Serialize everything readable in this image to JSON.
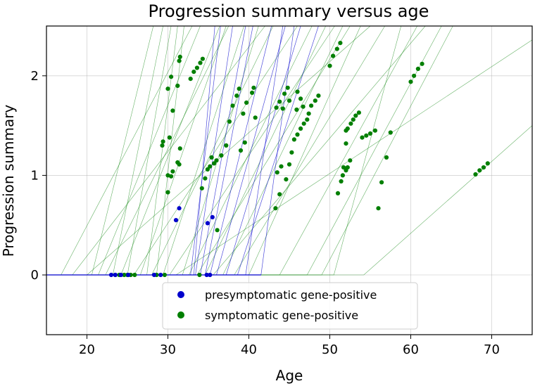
{
  "chart_data": {
    "type": "scatter",
    "title": "Progression summary versus age",
    "xlabel": "Age",
    "ylabel": "Progression summary",
    "xlim": [
      15,
      75
    ],
    "ylim": [
      -0.6,
      2.5
    ],
    "xticks": [
      "20",
      "30",
      "40",
      "50",
      "60",
      "70"
    ],
    "yticks": [
      "0",
      "1",
      "2"
    ],
    "xtick_values": [
      20,
      30,
      40,
      50,
      60,
      70
    ],
    "ytick_values": [
      0,
      1,
      2
    ],
    "grid": true,
    "legend_position": "bottom-center",
    "series": [
      {
        "name": "presymptomatic gene-positive",
        "color": "#0000cc",
        "points": [
          [
            23.0,
            0
          ],
          [
            23.5,
            0
          ],
          [
            24.2,
            0
          ],
          [
            25.1,
            0
          ],
          [
            28.3,
            0
          ],
          [
            29.1,
            0
          ],
          [
            34.8,
            0
          ],
          [
            35.2,
            0
          ],
          [
            31.0,
            0.55
          ],
          [
            31.4,
            0.67
          ],
          [
            34.9,
            0.52
          ],
          [
            35.5,
            0.58
          ]
        ],
        "trend_lines": [
          [
            [
              15,
              0
            ],
            [
              32.8,
              0
            ],
            [
              36.5,
              2.5
            ]
          ],
          [
            [
              15,
              0
            ],
            [
              33.2,
              0
            ],
            [
              35.8,
              2.5
            ]
          ],
          [
            [
              15,
              0
            ],
            [
              33.4,
              0
            ],
            [
              38.0,
              2.5
            ]
          ],
          [
            [
              15,
              0
            ],
            [
              34.0,
              0
            ],
            [
              39.6,
              2.5
            ]
          ],
          [
            [
              15,
              0
            ],
            [
              34.6,
              0
            ],
            [
              40.5,
              2.5
            ]
          ],
          [
            [
              15,
              0
            ],
            [
              35.2,
              0
            ],
            [
              42.8,
              2.5
            ]
          ],
          [
            [
              15,
              0
            ],
            [
              36.0,
              0
            ],
            [
              44.5,
              2.5
            ]
          ],
          [
            [
              15,
              0
            ],
            [
              37.2,
              0
            ],
            [
              46.4,
              2.5
            ]
          ],
          [
            [
              15,
              0
            ],
            [
              38.6,
              0
            ],
            [
              48.6,
              2.5
            ]
          ],
          [
            [
              15,
              0
            ],
            [
              39.6,
              0
            ],
            [
              44.2,
              2.5
            ]
          ],
          [
            [
              15,
              0
            ],
            [
              41.5,
              0
            ],
            [
              45.6,
              2.5
            ]
          ]
        ]
      },
      {
        "name": "symptomatic gene-positive",
        "color": "#007f00",
        "points": [
          [
            23.5,
            0
          ],
          [
            24.0,
            0
          ],
          [
            24.6,
            0
          ],
          [
            25.0,
            0
          ],
          [
            25.4,
            0
          ],
          [
            25.9,
            0
          ],
          [
            28.6,
            0
          ],
          [
            29.6,
            0
          ],
          [
            33.9,
            0
          ],
          [
            29.3,
            1.3
          ],
          [
            29.4,
            1.34
          ],
          [
            30.0,
            1.87
          ],
          [
            30.2,
            1.38
          ],
          [
            30.4,
            1.99
          ],
          [
            30.6,
            1.65
          ],
          [
            31.2,
            1.9
          ],
          [
            30.0,
            1.0
          ],
          [
            30.4,
            0.99
          ],
          [
            30.6,
            1.04
          ],
          [
            31.2,
            1.13
          ],
          [
            31.4,
            1.11
          ],
          [
            31.5,
            1.27
          ],
          [
            30.0,
            0.83
          ],
          [
            31.4,
            2.15
          ],
          [
            31.5,
            2.19
          ],
          [
            32.8,
            1.97
          ],
          [
            33.2,
            2.04
          ],
          [
            33.6,
            2.08
          ],
          [
            34.0,
            2.13
          ],
          [
            34.3,
            2.17
          ],
          [
            34.2,
            0.87
          ],
          [
            34.6,
            0.97
          ],
          [
            34.9,
            1.06
          ],
          [
            35.2,
            1.09
          ],
          [
            35.4,
            1.18
          ],
          [
            35.7,
            1.12
          ],
          [
            36.0,
            1.15
          ],
          [
            36.6,
            1.2
          ],
          [
            37.2,
            1.3
          ],
          [
            37.6,
            1.54
          ],
          [
            38.0,
            1.7
          ],
          [
            38.5,
            1.8
          ],
          [
            38.8,
            1.87
          ],
          [
            39.0,
            1.25
          ],
          [
            39.3,
            1.62
          ],
          [
            39.5,
            1.33
          ],
          [
            39.7,
            1.73
          ],
          [
            40.4,
            1.83
          ],
          [
            40.6,
            1.88
          ],
          [
            40.8,
            1.58
          ],
          [
            36.1,
            0.45
          ],
          [
            43.3,
            0.67
          ],
          [
            43.5,
            1.03
          ],
          [
            43.8,
            0.81
          ],
          [
            44.0,
            1.09
          ],
          [
            43.4,
            1.68
          ],
          [
            43.8,
            1.74
          ],
          [
            44.4,
            1.82
          ],
          [
            44.8,
            1.88
          ],
          [
            44.6,
            0.96
          ],
          [
            45.0,
            1.11
          ],
          [
            45.3,
            1.23
          ],
          [
            45.6,
            1.36
          ],
          [
            46.0,
            1.41
          ],
          [
            46.4,
            1.47
          ],
          [
            46.8,
            1.52
          ],
          [
            47.2,
            1.56
          ],
          [
            47.4,
            1.62
          ],
          [
            47.7,
            1.7
          ],
          [
            48.2,
            1.75
          ],
          [
            48.6,
            1.8
          ],
          [
            45.0,
            1.75
          ],
          [
            44.2,
            1.67
          ],
          [
            46.0,
            1.84
          ],
          [
            46.4,
            1.77
          ],
          [
            46.7,
            1.69
          ],
          [
            45.9,
            1.66
          ],
          [
            50.0,
            2.1
          ],
          [
            50.4,
            2.2
          ],
          [
            50.9,
            2.27
          ],
          [
            51.3,
            2.33
          ],
          [
            51.0,
            0.82
          ],
          [
            51.4,
            0.94
          ],
          [
            51.6,
            1.0
          ],
          [
            51.7,
            1.08
          ],
          [
            52.0,
            1.05
          ],
          [
            52.2,
            1.08
          ],
          [
            52.5,
            1.15
          ],
          [
            52.0,
            1.32
          ],
          [
            52.0,
            1.45
          ],
          [
            52.2,
            1.47
          ],
          [
            52.6,
            1.52
          ],
          [
            52.9,
            1.56
          ],
          [
            53.2,
            1.6
          ],
          [
            53.6,
            1.63
          ],
          [
            54.0,
            1.38
          ],
          [
            54.5,
            1.4
          ],
          [
            55.0,
            1.42
          ],
          [
            55.6,
            1.45
          ],
          [
            56.0,
            0.67
          ],
          [
            56.4,
            0.93
          ],
          [
            57.0,
            1.18
          ],
          [
            57.5,
            1.43
          ],
          [
            60.0,
            1.94
          ],
          [
            60.4,
            2.0
          ],
          [
            60.9,
            2.07
          ],
          [
            61.4,
            2.12
          ],
          [
            68.0,
            1.01
          ],
          [
            68.5,
            1.05
          ],
          [
            69.0,
            1.08
          ],
          [
            69.5,
            1.12
          ]
        ],
        "trend_lines": [
          [
            [
              15,
              0
            ],
            [
              16.8,
              0
            ],
            [
              33.0,
              2.5
            ]
          ],
          [
            [
              15,
              0
            ],
            [
              18.2,
              0
            ],
            [
              42.0,
              2.5
            ]
          ],
          [
            [
              15,
              0
            ],
            [
              20.0,
              0
            ],
            [
              55.0,
              2.5
            ]
          ],
          [
            [
              15,
              0
            ],
            [
              20.6,
              0
            ],
            [
              28.2,
              2.5
            ]
          ],
          [
            [
              15,
              0
            ],
            [
              21.4,
              0
            ],
            [
              34.0,
              2.5
            ]
          ],
          [
            [
              15,
              0
            ],
            [
              22.3,
              0
            ],
            [
              37.5,
              2.5
            ]
          ],
          [
            [
              15,
              0
            ],
            [
              23.2,
              0
            ],
            [
              29.4,
              2.5
            ]
          ],
          [
            [
              15,
              0
            ],
            [
              24.2,
              0
            ],
            [
              36.4,
              2.5
            ]
          ],
          [
            [
              15,
              0
            ],
            [
              25.0,
              0
            ],
            [
              30.4,
              2.5
            ]
          ],
          [
            [
              15,
              0
            ],
            [
              25.8,
              0
            ],
            [
              46.0,
              2.5
            ]
          ],
          [
            [
              15,
              0
            ],
            [
              26.6,
              0
            ],
            [
              37.2,
              2.5
            ]
          ],
          [
            [
              15,
              0
            ],
            [
              27.4,
              0
            ],
            [
              31.2,
              2.5
            ]
          ],
          [
            [
              15,
              0
            ],
            [
              28.0,
              0
            ],
            [
              43.0,
              2.5
            ]
          ],
          [
            [
              15,
              0
            ],
            [
              28.6,
              0
            ],
            [
              32.0,
              2.5
            ]
          ],
          [
            [
              15,
              0
            ],
            [
              29.4,
              0
            ],
            [
              39.4,
              2.5
            ]
          ],
          [
            [
              15,
              0
            ],
            [
              30.2,
              0
            ],
            [
              50.6,
              2.5
            ]
          ],
          [
            [
              15,
              0
            ],
            [
              31.0,
              0
            ],
            [
              75.0,
              2.36
            ]
          ],
          [
            [
              15,
              0
            ],
            [
              31.8,
              0
            ],
            [
              41.2,
              2.5
            ]
          ],
          [
            [
              15,
              0
            ],
            [
              32.6,
              0
            ],
            [
              47.8,
              2.5
            ]
          ],
          [
            [
              15,
              0
            ],
            [
              33.6,
              0
            ],
            [
              52.5,
              2.5
            ]
          ],
          [
            [
              15,
              0
            ],
            [
              34.6,
              0
            ],
            [
              49.5,
              2.5
            ]
          ],
          [
            [
              15,
              0
            ],
            [
              35.6,
              0
            ],
            [
              61.8,
              2.5
            ]
          ],
          [
            [
              15,
              0
            ],
            [
              36.8,
              0
            ],
            [
              51.6,
              2.5
            ]
          ],
          [
            [
              15,
              0
            ],
            [
              38.2,
              0
            ],
            [
              56.8,
              2.5
            ]
          ],
          [
            [
              15,
              0
            ],
            [
              40.0,
              0
            ],
            [
              53.8,
              2.5
            ]
          ],
          [
            [
              15,
              0
            ],
            [
              43.8,
              0
            ],
            [
              60.8,
              2.5
            ]
          ],
          [
            [
              15,
              0
            ],
            [
              47.2,
              0
            ],
            [
              63.8,
              2.5
            ]
          ],
          [
            [
              15,
              0
            ],
            [
              49.0,
              0
            ],
            [
              65.2,
              2.5
            ]
          ],
          [
            [
              15,
              0
            ],
            [
              50.5,
              0
            ],
            [
              58.8,
              2.5
            ]
          ],
          [
            [
              15,
              0
            ],
            [
              54.2,
              0
            ],
            [
              75.0,
              1.5
            ]
          ]
        ]
      }
    ]
  }
}
